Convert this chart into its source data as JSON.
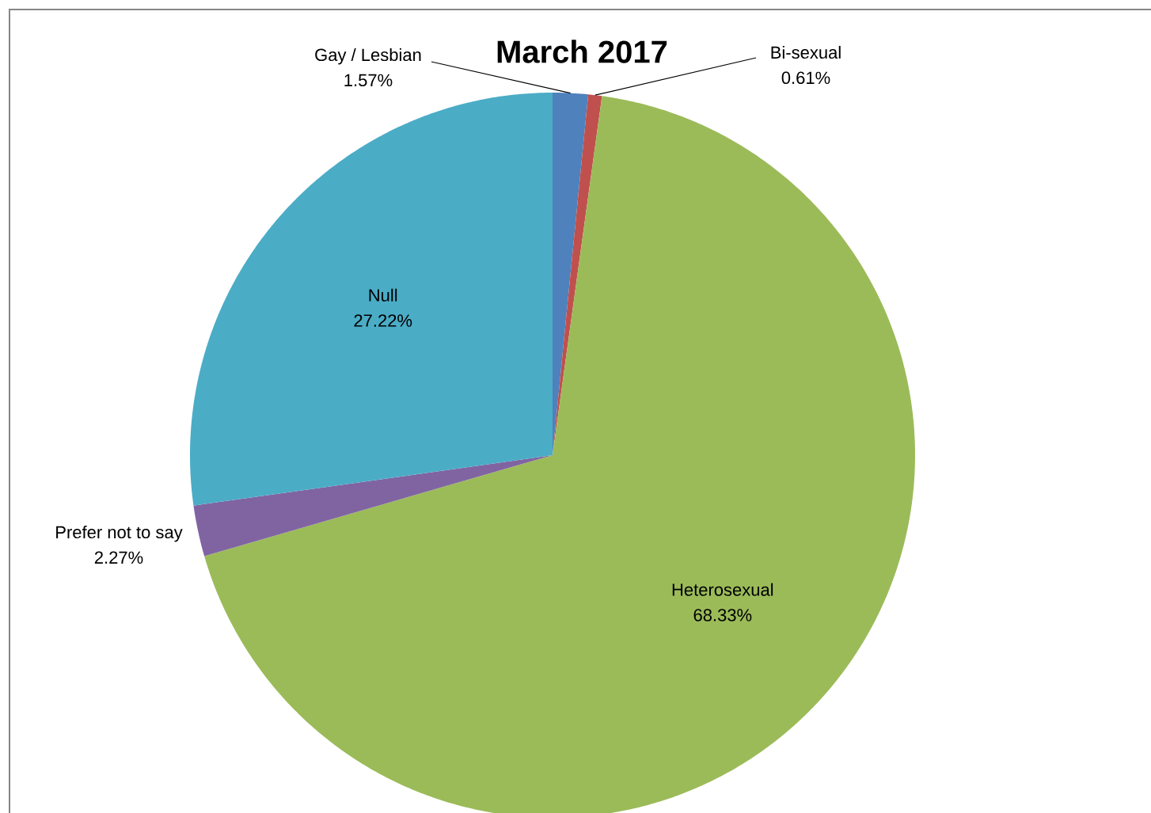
{
  "chart_data": {
    "type": "pie",
    "title": "March 2017",
    "categories": [
      "Gay / Lesbian",
      "Bi-sexual",
      "Heterosexual",
      "Prefer not to say",
      "Null"
    ],
    "values": [
      1.57,
      0.61,
      68.33,
      2.27,
      27.22
    ],
    "value_labels": [
      "1.57%",
      "0.61%",
      "68.33%",
      "2.27%",
      "27.22%"
    ],
    "colors": [
      "#4f81bd",
      "#c0504d",
      "#9bbb59",
      "#8064a2",
      "#4bacc6"
    ]
  }
}
